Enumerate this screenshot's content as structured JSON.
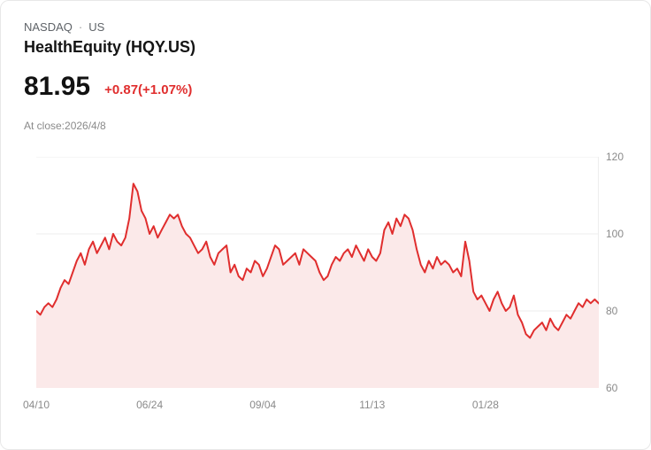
{
  "header": {
    "exchange": "NASDAQ",
    "separator": "·",
    "region": "US",
    "name": "HealthEquity (HQY.US)",
    "price": "81.95",
    "change": "+0.87(+1.07%)",
    "close_note": "At close:2026/4/8"
  },
  "colors": {
    "line": "#e02e2e",
    "fill": "#fbe9e9",
    "change_text": "#e02e2e",
    "grid": "#ededed",
    "axis_text": "#8a8a8a"
  },
  "chart_data": {
    "type": "area",
    "title": "HealthEquity (HQY.US) share price",
    "ylim": [
      60,
      120
    ],
    "y_ticks": [
      60,
      80,
      100,
      120
    ],
    "grid": true,
    "legend": false,
    "x_ticks": [
      {
        "label": "04/10",
        "index": 0
      },
      {
        "label": "06/24",
        "index": 28
      },
      {
        "label": "09/04",
        "index": 56
      },
      {
        "label": "11/13",
        "index": 83
      },
      {
        "label": "01/28",
        "index": 111
      }
    ],
    "values": [
      80,
      79,
      81,
      82,
      81,
      83,
      86,
      88,
      87,
      90,
      93,
      95,
      92,
      96,
      98,
      95,
      97,
      99,
      96,
      100,
      98,
      97,
      99,
      104,
      113,
      111,
      106,
      104,
      100,
      102,
      99,
      101,
      103,
      105,
      104,
      105,
      102,
      100,
      99,
      97,
      95,
      96,
      98,
      94,
      92,
      95,
      96,
      97,
      90,
      92,
      89,
      88,
      91,
      90,
      93,
      92,
      89,
      91,
      94,
      97,
      96,
      92,
      93,
      94,
      95,
      92,
      96,
      95,
      94,
      93,
      90,
      88,
      89,
      92,
      94,
      93,
      95,
      96,
      94,
      97,
      95,
      93,
      96,
      94,
      93,
      95,
      101,
      103,
      100,
      104,
      102,
      105,
      104,
      101,
      96,
      92,
      90,
      93,
      91,
      94,
      92,
      93,
      92,
      90,
      91,
      89,
      98,
      93,
      85,
      83,
      84,
      82,
      80,
      83,
      85,
      82,
      80,
      81,
      84,
      79,
      77,
      74,
      73,
      75,
      76,
      77,
      75,
      78,
      76,
      75,
      77,
      79,
      78,
      80,
      82,
      81,
      83,
      82,
      83,
      81.95
    ]
  }
}
